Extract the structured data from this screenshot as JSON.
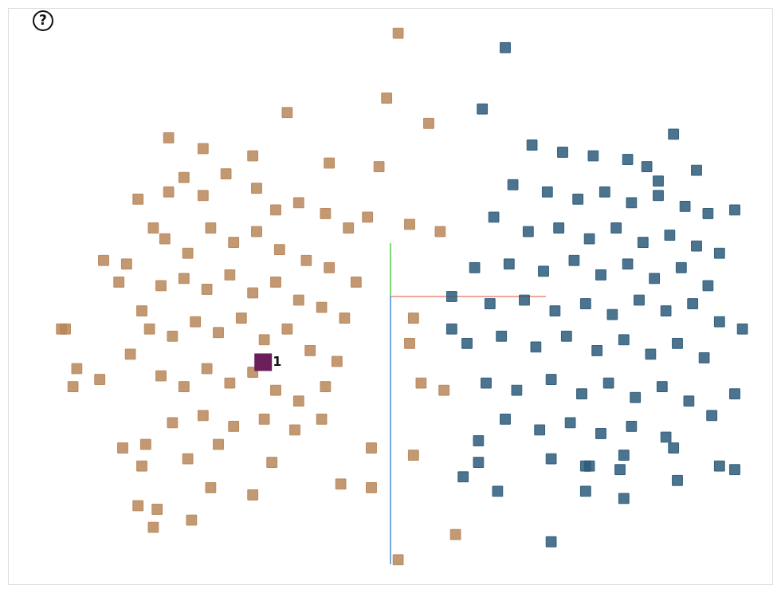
{
  "toolbar": {
    "help": "?"
  },
  "chart_data": {
    "type": "scatter",
    "tick_labels": false,
    "grid": false,
    "marker": "square",
    "xlim": [
      -10,
      10
    ],
    "ylim": [
      -8,
      8
    ],
    "annotations": [
      {
        "text": "1",
        "x": -3.1,
        "y": -1.8
      }
    ],
    "series": [
      {
        "color": "#b9875a",
        "x": [
          -7.5,
          -7.1,
          -8.5,
          -8.2,
          -7.6,
          -6.8,
          -6.5,
          -6.9,
          -6.2,
          -6.6,
          -5.8,
          -5.4,
          -4.9,
          -4.3,
          -3.5,
          -3.0,
          -2.4,
          -1.7,
          -1.1,
          -0.6,
          -5.9,
          -5.3,
          -4.7,
          -4.1,
          -3.5,
          -2.9,
          -2.2,
          -1.6,
          -0.9,
          -6.0,
          -5.4,
          -4.8,
          -4.2,
          -3.6,
          -3.0,
          -2.4,
          -1.8,
          -1.2,
          -6.3,
          -5.7,
          -5.1,
          -4.5,
          -3.9,
          -3.3,
          -2.7,
          -2.1,
          -1.4,
          -6.0,
          -5.4,
          -4.8,
          -4.2,
          -3.6,
          -3.0,
          -2.4,
          -1.7,
          -5.7,
          -4.9,
          -4.1,
          -3.3,
          -2.5,
          -1.8,
          -6.4,
          -5.3,
          -4.5,
          -3.1,
          -7.0,
          -6.5,
          -4.7,
          -3.6,
          -6.6,
          -6.1,
          -5.2,
          -1.3,
          -0.5,
          -8.6,
          -0.3,
          -1.6,
          -2.7,
          -3.6,
          -4.9,
          -5.8,
          -0.1,
          1.0,
          0.2,
          0.5,
          1.3,
          0.6,
          0.5,
          0.8,
          1.4,
          0.6,
          -0.5,
          1.7,
          0.2,
          -6.2,
          -8.3
        ],
        "values": [
          1.0,
          0.4,
          -0.9,
          -2.0,
          -2.3,
          -1.6,
          -0.4,
          0.9,
          1.9,
          2.7,
          2.9,
          3.3,
          2.8,
          3.4,
          3.0,
          2.4,
          2.6,
          2.3,
          1.9,
          2.2,
          1.6,
          1.2,
          1.9,
          1.5,
          1.8,
          1.3,
          1.0,
          0.8,
          0.4,
          0.3,
          0.5,
          0.2,
          0.6,
          0.1,
          0.4,
          -0.1,
          -0.3,
          -0.6,
          -0.9,
          -1.1,
          -0.7,
          -1.0,
          -0.6,
          -1.2,
          -0.9,
          -1.5,
          -1.8,
          -2.2,
          -2.5,
          -2.0,
          -2.4,
          -2.1,
          -2.6,
          -2.9,
          -2.5,
          -3.5,
          -3.3,
          -3.6,
          -3.4,
          -3.7,
          -3.4,
          -4.1,
          -4.5,
          -4.1,
          -4.6,
          -4.2,
          -4.7,
          -5.3,
          -5.5,
          -5.8,
          -5.9,
          -6.2,
          -5.2,
          -5.3,
          -0.9,
          3.6,
          3.7,
          5.1,
          3.9,
          4.1,
          4.4,
          5.5,
          4.8,
          7.3,
          2.0,
          1.8,
          -0.6,
          -1.3,
          -2.4,
          -2.6,
          -4.4,
          -4.2,
          -6.6,
          -7.3,
          -6.4,
          -2.5
        ]
      },
      {
        "color": "#2e5c7a",
        "x": [
          3.0,
          2.4,
          7.4,
          3.7,
          4.5,
          5.3,
          6.2,
          6.7,
          8.0,
          3.2,
          4.1,
          4.9,
          5.6,
          6.3,
          7.0,
          7.7,
          8.3,
          2.7,
          3.6,
          4.4,
          5.2,
          5.9,
          6.6,
          7.3,
          8.0,
          8.6,
          2.2,
          3.1,
          4.0,
          4.8,
          5.5,
          6.2,
          6.9,
          7.6,
          8.3,
          1.6,
          2.6,
          3.5,
          4.3,
          5.1,
          5.8,
          6.5,
          7.2,
          7.9,
          8.6,
          2.0,
          2.9,
          3.8,
          4.6,
          5.4,
          6.1,
          6.8,
          7.5,
          8.2,
          2.5,
          3.3,
          4.2,
          5.0,
          5.7,
          6.4,
          7.1,
          7.8,
          3.0,
          3.9,
          4.7,
          5.5,
          6.3,
          7.2,
          8.4,
          9.0,
          4.2,
          5.2,
          6.1,
          7.4,
          2.3,
          1.9,
          2.8,
          5.1,
          6.0,
          7.5,
          8.6,
          9.0,
          5.1,
          6.1,
          4.2,
          2.3,
          1.6,
          9.2,
          9.0,
          7.0
        ],
        "values": [
          6.9,
          5.2,
          4.5,
          4.2,
          4.0,
          3.9,
          3.8,
          3.6,
          3.5,
          3.1,
          2.9,
          2.7,
          2.9,
          2.6,
          2.8,
          2.5,
          2.3,
          2.2,
          1.8,
          1.9,
          1.6,
          1.9,
          1.5,
          1.7,
          1.4,
          1.2,
          0.8,
          0.9,
          0.7,
          1.0,
          0.6,
          0.9,
          0.5,
          0.8,
          0.3,
          0.0,
          -0.2,
          -0.1,
          -0.4,
          -0.2,
          -0.5,
          -0.1,
          -0.4,
          -0.2,
          -0.7,
          -1.3,
          -1.1,
          -1.4,
          -1.1,
          -1.5,
          -1.2,
          -1.6,
          -1.3,
          -1.7,
          -2.4,
          -2.6,
          -2.3,
          -2.7,
          -2.4,
          -2.8,
          -2.5,
          -2.9,
          -3.4,
          -3.7,
          -3.5,
          -3.8,
          -3.6,
          -3.9,
          -3.3,
          -2.7,
          -4.5,
          -4.7,
          -4.4,
          -4.2,
          -4.6,
          -5.0,
          -5.4,
          -4.7,
          -4.8,
          -5.1,
          -4.7,
          -4.8,
          -5.4,
          -5.6,
          -6.8,
          -4.0,
          -0.9,
          -0.9,
          2.4,
          3.2
        ]
      }
    ]
  }
}
